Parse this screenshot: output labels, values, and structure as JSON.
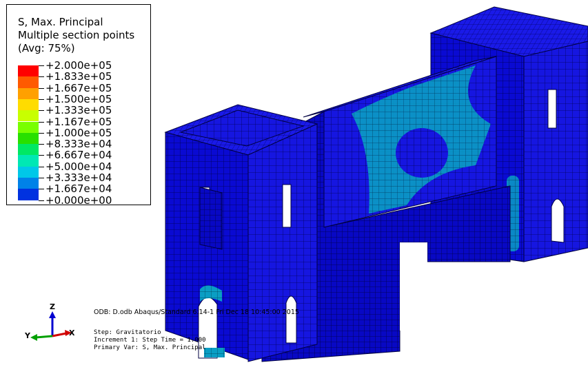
{
  "legend": {
    "title_line1": "S, Max. Principal",
    "title_line2": "Multiple section points",
    "title_line3": "(Avg: 75%)",
    "entries": [
      {
        "label": "+2.000e+05",
        "color": "#ff0000"
      },
      {
        "label": "+1.833e+05",
        "color": "#ff5a00"
      },
      {
        "label": "+1.667e+05",
        "color": "#ffa000"
      },
      {
        "label": "+1.500e+05",
        "color": "#ffdc00"
      },
      {
        "label": "+1.333e+05",
        "color": "#c8ff00"
      },
      {
        "label": "+1.167e+05",
        "color": "#78ff00"
      },
      {
        "label": "+1.000e+05",
        "color": "#28e000"
      },
      {
        "label": "+8.333e+04",
        "color": "#00e864"
      },
      {
        "label": "+6.667e+04",
        "color": "#00e8b4"
      },
      {
        "label": "+5.000e+04",
        "color": "#00c8e8"
      },
      {
        "label": "+3.333e+04",
        "color": "#0082e8"
      },
      {
        "label": "+1.667e+04",
        "color": "#0032e0"
      },
      {
        "label": "+0.000e+00",
        "color": "#0000d8"
      }
    ]
  },
  "info": {
    "odb_line": "ODB: D.odb    Abaqus/Standard 6.14-1    Fri Dec 18 10:45:00 2015",
    "step_line": "Step: Gravitatorio",
    "increment_line": "Increment    1: Step Time =    1.000",
    "primary_var_line": "Primary Var: S, Max. Principal"
  },
  "triad": {
    "x_label": "X",
    "y_label": "Y",
    "z_label": "Z",
    "x_color": "#d00000",
    "y_color": "#00a000",
    "z_color": "#0000d0"
  },
  "colors": {
    "mesh_face_dark": "#0a0ad0",
    "mesh_face_light": "#1a1ae6",
    "stress_cyan": "#00a8c8",
    "stress_teal": "#0090b0",
    "mesh_line": "#000050"
  }
}
